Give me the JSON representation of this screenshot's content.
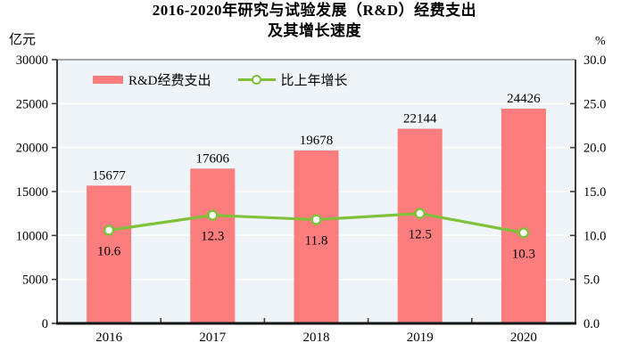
{
  "header": {
    "title_line1": "2016-2020年研究与试验发展（R&D）经费支出",
    "title_line2": "及其增长速度",
    "left_unit": "亿元",
    "right_unit": "%"
  },
  "legend": {
    "bar_label": "R&D经费支出",
    "line_label": "比上年增长"
  },
  "colors": {
    "bar": "#FB7D7D",
    "line": "#80C13C",
    "marker_fill": "#FFFFFF",
    "plot_bg": "#EEF4F7",
    "gridline": "#FFFFFF",
    "border_top": "#A5A5A5",
    "border_side": "#3D3D3D",
    "axis_bottom": "#161616",
    "tick": "#3D3D3D",
    "text": "#000000"
  },
  "chart_data": {
    "type": "bar",
    "title": "2016-2020年研究与试验发展（R&D）经费支出及其增长速度",
    "categories": [
      "2016",
      "2017",
      "2018",
      "2019",
      "2020"
    ],
    "series": [
      {
        "name": "R&D经费支出",
        "style": "bar",
        "axis": "left",
        "values": [
          15677,
          17606,
          19678,
          22144,
          24426
        ]
      },
      {
        "name": "比上年增长",
        "style": "line",
        "axis": "right",
        "values": [
          10.6,
          12.3,
          11.8,
          12.5,
          10.3
        ]
      }
    ],
    "left_axis": {
      "unit": "亿元",
      "min": 0,
      "max": 30000,
      "step": 5000,
      "tick_labels": [
        "0",
        "5000",
        "10000",
        "15000",
        "20000",
        "25000",
        "30000"
      ]
    },
    "right_axis": {
      "unit": "%",
      "min": 0,
      "max": 30,
      "step": 5,
      "tick_labels": [
        "0.0",
        "5.0",
        "10.0",
        "15.0",
        "20.0",
        "25.0",
        "30.0"
      ]
    },
    "grid": true,
    "legend_position": "top-left-inside",
    "data_labels": true
  }
}
